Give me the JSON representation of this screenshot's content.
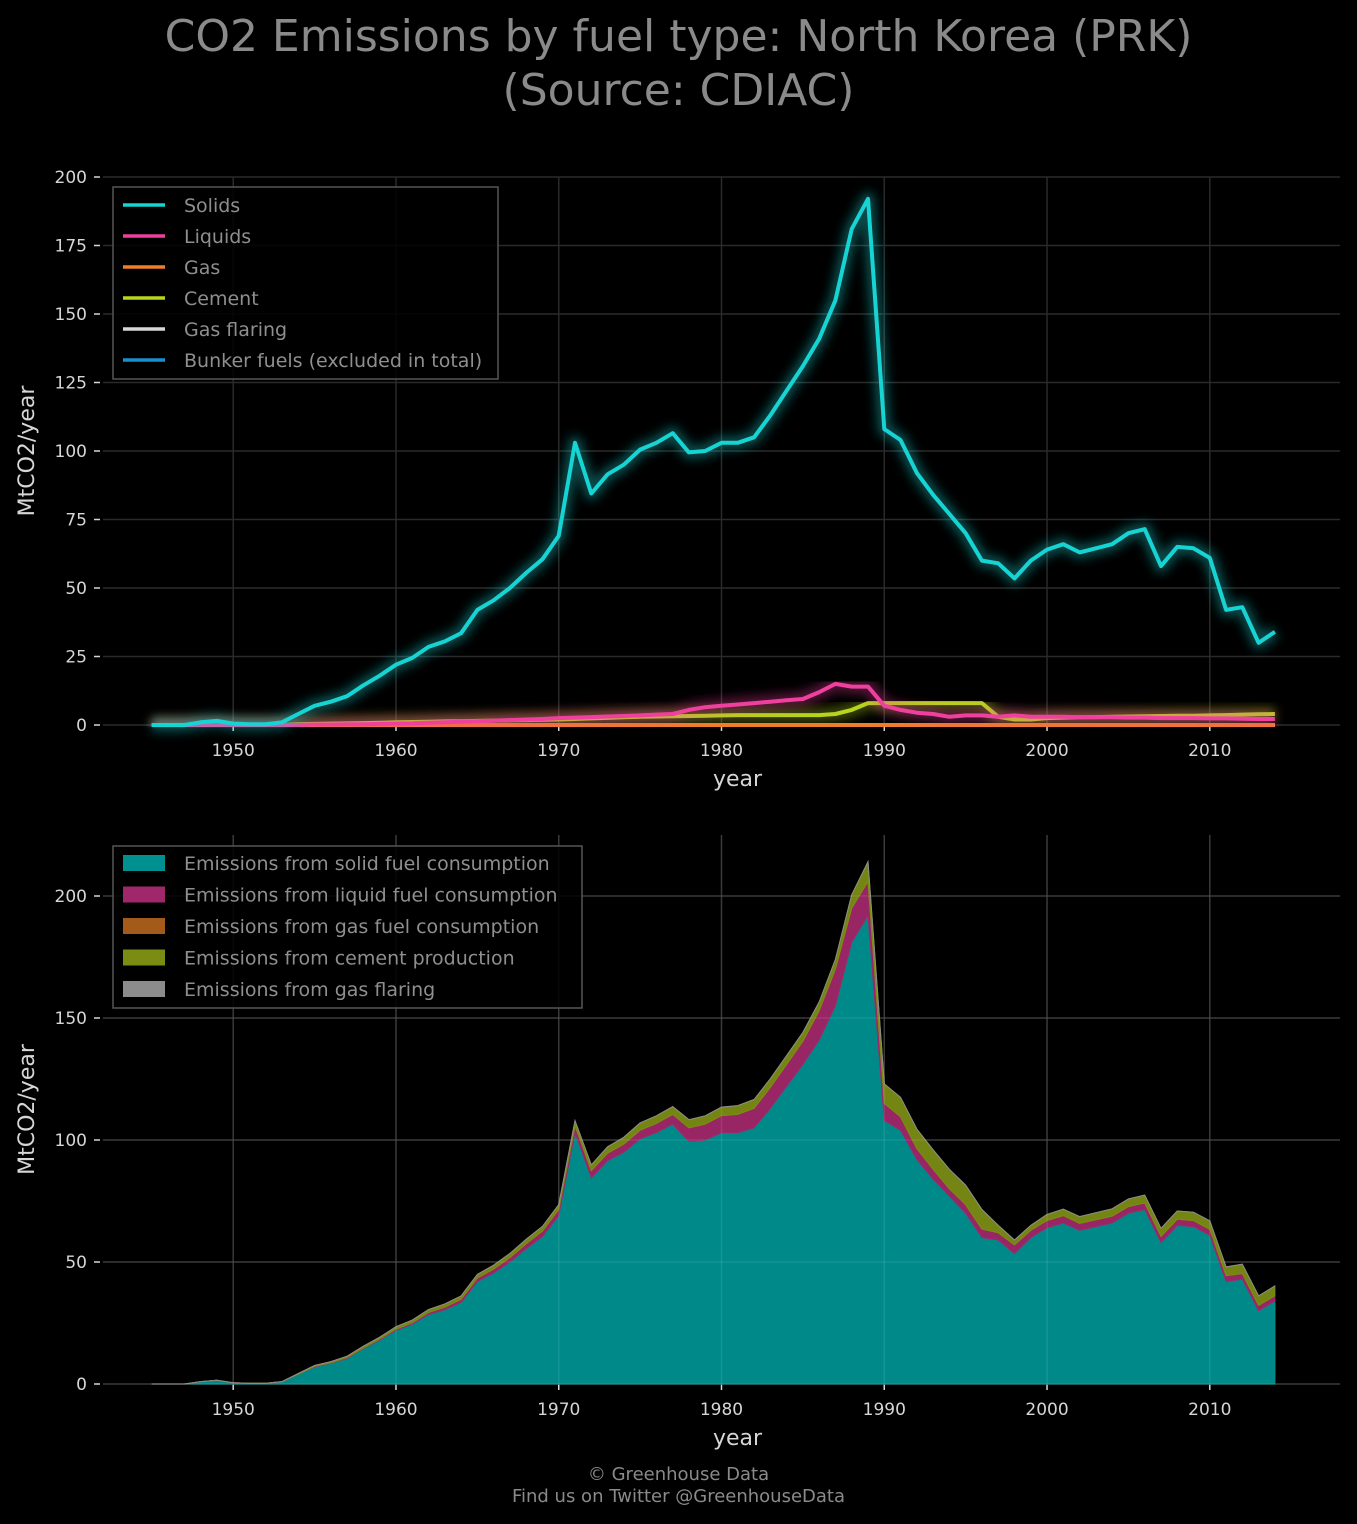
{
  "title_line1": "CO2 Emissions by fuel type: North Korea (PRK)",
  "title_line2": "(Source: CDIAC)",
  "footer_line1": "© Greenhouse Data",
  "footer_line2": "Find us on Twitter @GreenhouseData",
  "chart_data": [
    {
      "type": "line",
      "xlabel": "year",
      "ylabel": "MtCO2/year",
      "xlim": [
        1942,
        2018
      ],
      "ylim": [
        0,
        200
      ],
      "xticks": [
        1950,
        1960,
        1970,
        1980,
        1990,
        2000,
        2010
      ],
      "yticks": [
        0,
        25,
        50,
        75,
        100,
        125,
        150,
        175,
        200
      ],
      "grid": true,
      "legend": "top-left",
      "x": [
        1945,
        1946,
        1947,
        1948,
        1949,
        1950,
        1951,
        1952,
        1953,
        1954,
        1955,
        1956,
        1957,
        1958,
        1959,
        1960,
        1961,
        1962,
        1963,
        1964,
        1965,
        1966,
        1967,
        1968,
        1969,
        1970,
        1971,
        1972,
        1973,
        1974,
        1975,
        1976,
        1977,
        1978,
        1979,
        1980,
        1981,
        1982,
        1983,
        1984,
        1985,
        1986,
        1987,
        1988,
        1989,
        1990,
        1991,
        1992,
        1993,
        1994,
        1995,
        1996,
        1997,
        1998,
        1999,
        2000,
        2001,
        2002,
        2003,
        2004,
        2005,
        2006,
        2007,
        2008,
        2009,
        2010,
        2011,
        2012,
        2013,
        2014
      ],
      "series": [
        {
          "name": "Solids",
          "color": "#17d4d4",
          "values": [
            0,
            0,
            0,
            1,
            1.5,
            0.5,
            0.3,
            0.3,
            1,
            4,
            7,
            8.5,
            10.5,
            14.5,
            18,
            22,
            24.5,
            28.5,
            30.5,
            33.5,
            42,
            45.5,
            50,
            55.5,
            60.5,
            69,
            103,
            84.5,
            91.5,
            95,
            100.5,
            103,
            106.5,
            99.5,
            100,
            103,
            103,
            105,
            113,
            122,
            131,
            141,
            155,
            181,
            192,
            108,
            104,
            92,
            84,
            77,
            70,
            60,
            59,
            53.5,
            60,
            64,
            66,
            63,
            64.5,
            66,
            70,
            71.5,
            58,
            65,
            64.5,
            61,
            42,
            43,
            30,
            34
          ]
        },
        {
          "name": "Liquids",
          "color": "#f0409e",
          "values": [
            0,
            0,
            0,
            0,
            0,
            0,
            0,
            0,
            0,
            0,
            0.2,
            0.2,
            0.3,
            0.3,
            0.4,
            0.5,
            0.6,
            0.8,
            1,
            1.2,
            1.4,
            1.6,
            1.8,
            2,
            2.2,
            2.5,
            2.7,
            2.9,
            3.1,
            3.3,
            3.5,
            3.8,
            4,
            5.5,
            6.5,
            7,
            7.5,
            8,
            8.5,
            9,
            9.5,
            12,
            15,
            14,
            14,
            7,
            5.5,
            4.5,
            4,
            3,
            3.5,
            3.5,
            3,
            3.5,
            3,
            3,
            3,
            2.8,
            2.8,
            2.8,
            2.7,
            2.7,
            2.5,
            2.5,
            2.5,
            2.4,
            2.4,
            2.3,
            2.2,
            2.2
          ]
        },
        {
          "name": "Gas",
          "color": "#f07d2a",
          "values": [
            0,
            0,
            0,
            0,
            0,
            0,
            0,
            0,
            0,
            0,
            0,
            0,
            0,
            0,
            0,
            0,
            0,
            0,
            0,
            0,
            0,
            0,
            0,
            0,
            0,
            0,
            0,
            0,
            0,
            0,
            0,
            0,
            0,
            0,
            0,
            0,
            0,
            0,
            0,
            0,
            0,
            0,
            0,
            0,
            0,
            0,
            0,
            0,
            0,
            0,
            0,
            0,
            0,
            0,
            0,
            0,
            0,
            0,
            0,
            0,
            0,
            0,
            0,
            0,
            0,
            0,
            0,
            0,
            0,
            0
          ]
        },
        {
          "name": "Cement",
          "color": "#b8d41c",
          "values": [
            0,
            0,
            0,
            0,
            0,
            0,
            0,
            0,
            0,
            0.3,
            0.4,
            0.5,
            0.6,
            0.7,
            0.8,
            1,
            1.1,
            1.2,
            1.3,
            1.4,
            1.5,
            1.6,
            1.7,
            1.8,
            1.9,
            2,
            2.2,
            2.4,
            2.6,
            2.8,
            3,
            3.1,
            3.2,
            3.3,
            3.4,
            3.5,
            3.6,
            3.6,
            3.6,
            3.6,
            3.6,
            3.6,
            4,
            5.5,
            8,
            8,
            8,
            8,
            8,
            8,
            8,
            8,
            3,
            2,
            2,
            2.5,
            2.7,
            2.8,
            2.9,
            3,
            3.1,
            3.2,
            3.3,
            3.4,
            3.4,
            3.5,
            3.6,
            3.8,
            3.9,
            4
          ]
        },
        {
          "name": "Gas flaring",
          "color": "#d8d8d8",
          "values": [
            0,
            0,
            0,
            0,
            0,
            0,
            0,
            0,
            0,
            0,
            0,
            0,
            0,
            0,
            0,
            0,
            0,
            0,
            0,
            0,
            0,
            0,
            0,
            0,
            0,
            0,
            0,
            0,
            0,
            0,
            0,
            0,
            0,
            0,
            0,
            0,
            0,
            0,
            0,
            0,
            0,
            0,
            0,
            0,
            0,
            0,
            0,
            0,
            0,
            0,
            0,
            0,
            0,
            0,
            0,
            0,
            0,
            0,
            0,
            0,
            0,
            0,
            0,
            0,
            0,
            0,
            0,
            0,
            0,
            0
          ]
        },
        {
          "name": "Bunker fuels (excluded in total)",
          "color": "#1a8fd0",
          "values": [
            0,
            0,
            0,
            0,
            0,
            0,
            0,
            0,
            0,
            0,
            0,
            0,
            0,
            0,
            0,
            0,
            0,
            0,
            0,
            0,
            0,
            0,
            0,
            0,
            0,
            0,
            0,
            0,
            0,
            0,
            0,
            0,
            0,
            0,
            0,
            0,
            0,
            0,
            0,
            0,
            0,
            0,
            0,
            0,
            0,
            0,
            0,
            0,
            0,
            0,
            0,
            0,
            0,
            0,
            0,
            0,
            0,
            0,
            0,
            0,
            0,
            0,
            0,
            0,
            0,
            0,
            0,
            0,
            0,
            0
          ]
        }
      ]
    },
    {
      "type": "area",
      "stacked": true,
      "xlabel": "year",
      "ylabel": "MtCO2/year",
      "xlim": [
        1942,
        2018
      ],
      "ylim": [
        0,
        225
      ],
      "xticks": [
        1950,
        1960,
        1970,
        1980,
        1990,
        2000,
        2010
      ],
      "yticks": [
        0,
        50,
        100,
        150,
        200
      ],
      "grid": true,
      "legend": "top-left",
      "series_ref": "same values as chart 1",
      "series": [
        {
          "name": "Emissions from solid fuel consumption",
          "color": "#009090",
          "source": "Solids"
        },
        {
          "name": "Emissions from liquid fuel consumption",
          "color": "#a0286a",
          "source": "Liquids"
        },
        {
          "name": "Emissions from gas fuel consumption",
          "color": "#a35a1a",
          "source": "Gas"
        },
        {
          "name": "Emissions from cement production",
          "color": "#7b8c14",
          "source": "Cement"
        },
        {
          "name": "Emissions from gas flaring",
          "color": "#8c8c8c",
          "source": "Gas flaring"
        }
      ]
    }
  ]
}
